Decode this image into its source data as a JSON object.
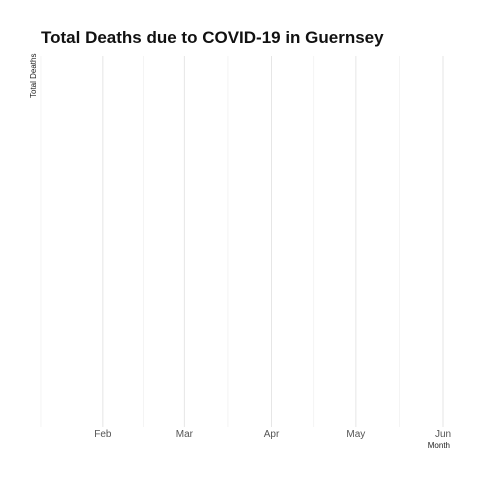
{
  "chart_data": {
    "type": "line",
    "title": "Total Deaths due to COVID-19 in Guernsey",
    "xlabel": "Month",
    "ylabel": "Total Deaths",
    "x_ticks": [
      {
        "label": "Feb",
        "date": "2020-02-01"
      },
      {
        "label": "Mar",
        "date": "2020-03-01"
      },
      {
        "label": "Apr",
        "date": "2020-04-01"
      },
      {
        "label": "May",
        "date": "2020-05-01"
      },
      {
        "label": "Jun",
        "date": "2020-06-01"
      }
    ],
    "xlim": [
      "2020-01-10",
      "2020-06-01"
    ],
    "series": [],
    "grid": true,
    "legend": "none"
  }
}
